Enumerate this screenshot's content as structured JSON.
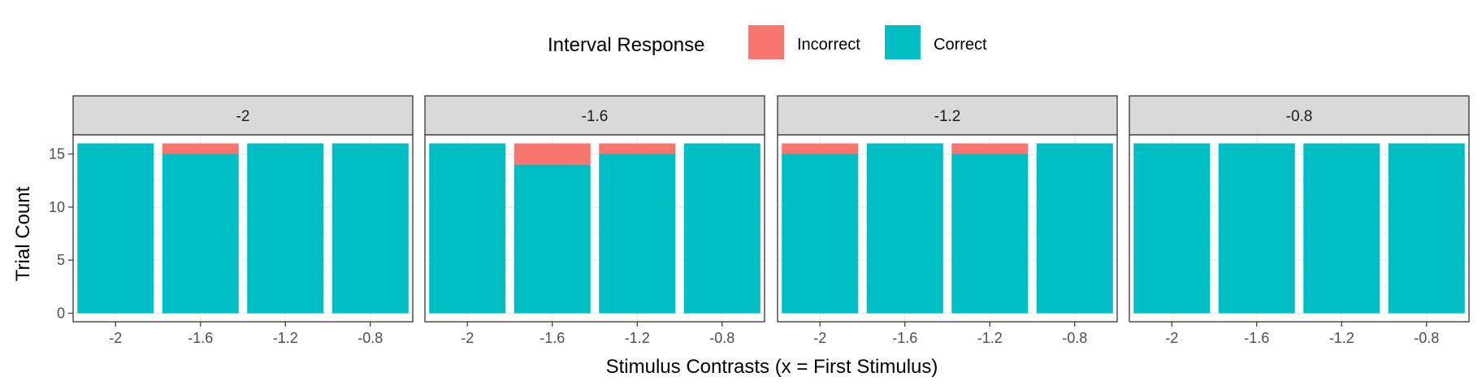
{
  "chart_data": {
    "type": "bar",
    "stacked": true,
    "facet_variable_label": "",
    "facets": [
      "-2",
      "-1.6",
      "-1.2",
      "-0.8"
    ],
    "categories": [
      "-2",
      "-1.6",
      "-1.2",
      "-0.8"
    ],
    "series": [
      {
        "name": "Incorrect",
        "color": "#F8766D",
        "values_by_facet": [
          [
            0,
            1,
            0,
            0
          ],
          [
            0,
            2,
            1,
            0
          ],
          [
            1,
            0,
            1,
            0
          ],
          [
            0,
            0,
            0,
            0
          ]
        ]
      },
      {
        "name": "Correct",
        "color": "#00BFC4",
        "values_by_facet": [
          [
            16,
            15,
            16,
            16
          ],
          [
            16,
            14,
            15,
            16
          ],
          [
            15,
            16,
            15,
            16
          ],
          [
            16,
            16,
            16,
            16
          ]
        ]
      }
    ],
    "xlabel": "Stimulus Contrasts (x = First Stimulus)",
    "ylabel": "Trial Count",
    "ylim": [
      -0.8,
      16.8
    ],
    "yticks": [
      0,
      5,
      10,
      15
    ],
    "legend": {
      "title": "Interval Response",
      "position": "top"
    },
    "grid": true
  }
}
